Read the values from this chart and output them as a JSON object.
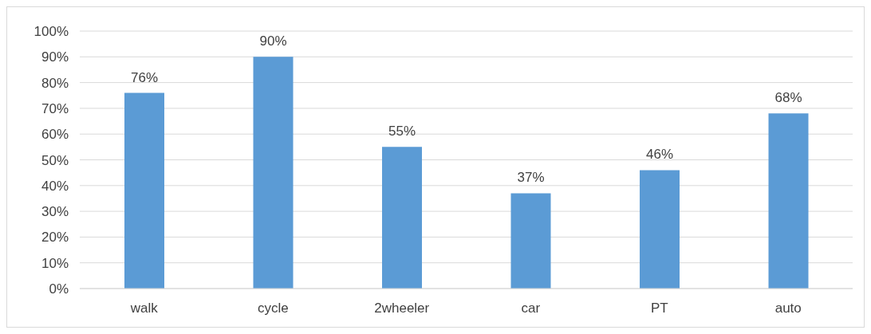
{
  "chart_data": {
    "type": "bar",
    "categories": [
      "walk",
      "cycle",
      "2wheeler",
      "car",
      "PT",
      "auto"
    ],
    "values": [
      76,
      90,
      55,
      37,
      46,
      68
    ],
    "value_labels": [
      "76%",
      "90%",
      "55%",
      "37%",
      "46%",
      "68%"
    ],
    "color": "#5b9bd5",
    "ylim": [
      0,
      100
    ],
    "yticks": [
      {
        "value": 0,
        "label": "0%"
      },
      {
        "value": 10,
        "label": "10%"
      },
      {
        "value": 20,
        "label": "20%"
      },
      {
        "value": 30,
        "label": "30%"
      },
      {
        "value": 40,
        "label": "40%"
      },
      {
        "value": 50,
        "label": "50%"
      },
      {
        "value": 60,
        "label": "60%"
      },
      {
        "value": 70,
        "label": "70%"
      },
      {
        "value": 80,
        "label": "80%"
      },
      {
        "value": 90,
        "label": "90%"
      },
      {
        "value": 100,
        "label": "100%"
      }
    ],
    "grid": "y"
  }
}
